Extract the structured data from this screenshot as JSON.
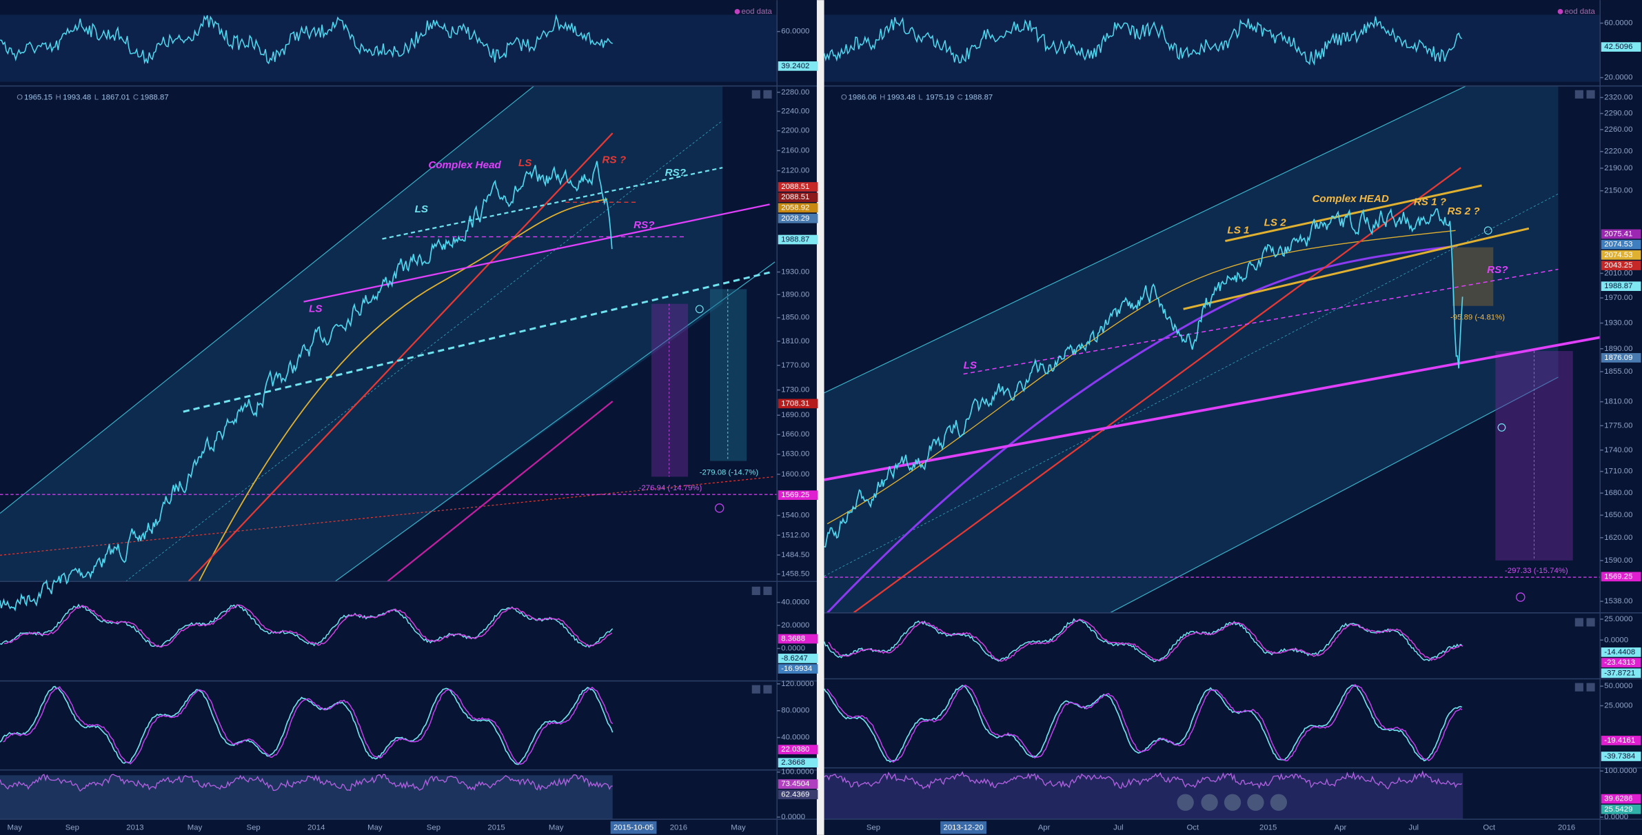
{
  "panels": [
    {
      "eod": "eod data",
      "ohlc": [
        "O",
        "1965.15",
        "H",
        "1993.48",
        "L",
        "1867.01",
        "C",
        "1988.87"
      ],
      "price_ticks": [
        {
          "value": 2280,
          "label": "2280.00"
        },
        {
          "value": 2240,
          "label": "2240.00"
        },
        {
          "value": 2200,
          "label": "2200.00"
        },
        {
          "value": 2160,
          "label": "2160.00"
        },
        {
          "value": 2120,
          "label": "2120.00"
        },
        {
          "value": 1930,
          "label": "1930.00"
        },
        {
          "value": 1890,
          "label": "1890.00"
        },
        {
          "value": 1850,
          "label": "1850.00"
        },
        {
          "value": 1810,
          "label": "1810.00"
        },
        {
          "value": 1770,
          "label": "1770.00"
        },
        {
          "value": 1730,
          "label": "1730.00"
        },
        {
          "value": 1690,
          "label": "1690.00"
        },
        {
          "value": 1660,
          "label": "1660.00"
        },
        {
          "value": 1630,
          "label": "1630.00"
        },
        {
          "value": 1600,
          "label": "1600.00"
        },
        {
          "value": 1540,
          "label": "1540.00"
        },
        {
          "value": 1512,
          "label": "1512.00"
        },
        {
          "value": 1484.5,
          "label": "1484.50"
        },
        {
          "value": 1458.5,
          "label": "1458.50"
        }
      ],
      "price_badges": [
        {
          "value": 2088.51,
          "label": "2088.51",
          "color": "#c62828"
        },
        {
          "value": 2088.51,
          "label": "2088.51",
          "color": "#8e1b1b"
        },
        {
          "value": 2058.92,
          "label": "2058.92",
          "color": "#c88a10"
        },
        {
          "value": 2028.29,
          "label": "2028.29",
          "color": "#4a7bb0"
        },
        {
          "value": 1988.87,
          "label": "1988.87",
          "color": "#7fe8f2"
        },
        {
          "value": 1708.31,
          "label": "1708.31",
          "color": "#b71c1c"
        },
        {
          "value": 1569.25,
          "label": "1569.25",
          "color": "#e020d0"
        }
      ],
      "annotations": [
        {
          "text": "Complex Head",
          "color": "#e040fb"
        },
        {
          "text": "LS",
          "color": "#e53935"
        },
        {
          "text": "RS ?",
          "color": "#e53935"
        },
        {
          "text": "RS?",
          "color": "#6fe3f0"
        },
        {
          "text": "LS",
          "color": "#6fe3f0"
        },
        {
          "text": "RS?",
          "color": "#e040fb"
        },
        {
          "text": "LS",
          "color": "#e040fb"
        },
        {
          "text": "-276.94 (-14.79%)",
          "color": "#d050f0"
        },
        {
          "text": "-279.08 (-14.7%)",
          "color": "#6fe3f0"
        }
      ],
      "sub_panels": [
        {
          "ticks": [
            {
              "value": 60,
              "label": "60.0000"
            }
          ],
          "badges": [
            {
              "value": 39.2402,
              "label": "39.2402",
              "color": "#7fe8f2"
            }
          ]
        },
        {
          "ticks": [
            {
              "value": 40,
              "label": "40.0000"
            },
            {
              "value": 20,
              "label": "20.0000"
            },
            {
              "value": 0,
              "label": "0.0000"
            }
          ],
          "badges": [
            {
              "value": 8.3688,
              "label": "8.3688",
              "color": "#e020d0"
            },
            {
              "value": -8.6247,
              "label": "-8.6247",
              "color": "#7fe8f2"
            },
            {
              "value": -16.9934,
              "label": "-16.9934",
              "color": "#3f7fc0"
            }
          ]
        },
        {
          "ticks": [
            {
              "value": 120,
              "label": "120.0000"
            },
            {
              "value": 80,
              "label": "80.0000"
            },
            {
              "value": 40,
              "label": "40.0000"
            }
          ],
          "badges": [
            {
              "value": 22.038,
              "label": "22.0380",
              "color": "#e020d0"
            },
            {
              "value": 2.3668,
              "label": "2.3668",
              "color": "#7fe8f2"
            }
          ]
        },
        {
          "ticks": [
            {
              "value": 100,
              "label": "100.0000"
            },
            {
              "value": 0,
              "label": "0.0000"
            }
          ],
          "badges": [
            {
              "value": 73.4504,
              "label": "73.4504",
              "color": "#b040c0"
            },
            {
              "value": 62.4369,
              "label": "62.4369",
              "color": "#3a3f70"
            }
          ]
        }
      ],
      "time_labels": [
        {
          "label": "May"
        },
        {
          "label": "Sep"
        },
        {
          "label": "2013"
        },
        {
          "label": "May"
        },
        {
          "label": "Sep"
        },
        {
          "label": "2014"
        },
        {
          "label": "May"
        },
        {
          "label": "Sep"
        },
        {
          "label": "2015"
        },
        {
          "label": "May"
        },
        {
          "label": "2015-10-05",
          "highlight": true
        },
        {
          "label": "2016"
        },
        {
          "label": "May"
        }
      ]
    },
    {
      "eod": "eod data",
      "ohlc": [
        "O",
        "1986.06",
        "H",
        "1993.48",
        "L",
        "1975.19",
        "C",
        "1988.87"
      ],
      "price_ticks": [
        {
          "value": 2320,
          "label": "2320.00"
        },
        {
          "value": 2290,
          "label": "2290.00"
        },
        {
          "value": 2260,
          "label": "2260.00"
        },
        {
          "value": 2220,
          "label": "2220.00"
        },
        {
          "value": 2190,
          "label": "2190.00"
        },
        {
          "value": 2150,
          "label": "2150.00"
        },
        {
          "value": 2010,
          "label": "2010.00"
        },
        {
          "value": 1970,
          "label": "1970.00"
        },
        {
          "value": 1930,
          "label": "1930.00"
        },
        {
          "value": 1890,
          "label": "1890.00"
        },
        {
          "value": 1855,
          "label": "1855.00"
        },
        {
          "value": 1810,
          "label": "1810.00"
        },
        {
          "value": 1775,
          "label": "1775.00"
        },
        {
          "value": 1740,
          "label": "1740.00"
        },
        {
          "value": 1710,
          "label": "1710.00"
        },
        {
          "value": 1680,
          "label": "1680.00"
        },
        {
          "value": 1650,
          "label": "1650.00"
        },
        {
          "value": 1620,
          "label": "1620.00"
        },
        {
          "value": 1590,
          "label": "1590.00"
        },
        {
          "value": 1538,
          "label": "1538.00"
        }
      ],
      "price_badges": [
        {
          "value": 2075.41,
          "label": "2075.41",
          "color": "#9c27b0"
        },
        {
          "value": 2074.53,
          "label": "2074.53",
          "color": "#3f7fc0"
        },
        {
          "value": 2074.53,
          "label": "2074.53",
          "color": "#e0b030"
        },
        {
          "value": 2043.25,
          "label": "2043.25",
          "color": "#c62828"
        },
        {
          "value": 1988.87,
          "label": "1988.87",
          "color": "#7fe8f2"
        },
        {
          "value": 1876.09,
          "label": "1876.09",
          "color": "#4a7bb0"
        },
        {
          "value": 1569.25,
          "label": "1569.25",
          "color": "#e020d0"
        }
      ],
      "annotations": [
        {
          "text": "Complex HEAD",
          "color": "#f5b942"
        },
        {
          "text": "LS 1",
          "color": "#f5b942"
        },
        {
          "text": "LS 2",
          "color": "#f5b942"
        },
        {
          "text": "RS 1 ?",
          "color": "#f5b942"
        },
        {
          "text": "RS 2 ?",
          "color": "#f5b942"
        },
        {
          "text": "RS?",
          "color": "#e040fb"
        },
        {
          "text": "LS",
          "color": "#e040fb"
        },
        {
          "text": "-95.89 (-4.81%)",
          "color": "#f5b942"
        },
        {
          "text": "-297.33 (-15.74%)",
          "color": "#d050f0"
        }
      ],
      "sub_panels": [
        {
          "ticks": [
            {
              "value": 60,
              "label": "60.0000"
            },
            {
              "value": 20,
              "label": "20.0000"
            }
          ],
          "badges": [
            {
              "value": 42.5096,
              "label": "42.5096",
              "color": "#7fe8f2"
            }
          ]
        },
        {
          "ticks": [
            {
              "value": 25,
              "label": "25.0000"
            },
            {
              "value": 0,
              "label": "0.0000"
            }
          ],
          "badges": [
            {
              "value": -14.4408,
              "label": "-14.4408",
              "color": "#7fe8f2"
            },
            {
              "value": -23.4313,
              "label": "-23.4313",
              "color": "#e020d0"
            },
            {
              "value": -37.8721,
              "label": "-37.8721",
              "color": "#7fe8f2"
            }
          ]
        },
        {
          "ticks": [
            {
              "value": 50,
              "label": "50.0000"
            },
            {
              "value": 25,
              "label": "25.0000"
            }
          ],
          "badges": [
            {
              "value": -19.4161,
              "label": "-19.4161",
              "color": "#e020d0"
            },
            {
              "value": -39.7384,
              "label": "-39.7384",
              "color": "#7fe8f2"
            }
          ]
        },
        {
          "ticks": [
            {
              "value": 100,
              "label": "100.0000"
            },
            {
              "value": 0,
              "label": "0.0000"
            }
          ],
          "badges": [
            {
              "value": 39.6286,
              "label": "39.6286",
              "color": "#e020d0"
            },
            {
              "value": 25.5429,
              "label": "25.5429",
              "color": "#2fb0a8"
            }
          ]
        }
      ],
      "time_labels": [
        {
          "label": "Sep"
        },
        {
          "label": "2013-12-20",
          "highlight": true
        },
        {
          "label": "Apr"
        },
        {
          "label": "Jul"
        },
        {
          "label": "Oct"
        },
        {
          "label": "2015"
        },
        {
          "label": "Apr"
        },
        {
          "label": "Jul"
        },
        {
          "label": "Oct"
        },
        {
          "label": "2016"
        }
      ]
    }
  ]
}
